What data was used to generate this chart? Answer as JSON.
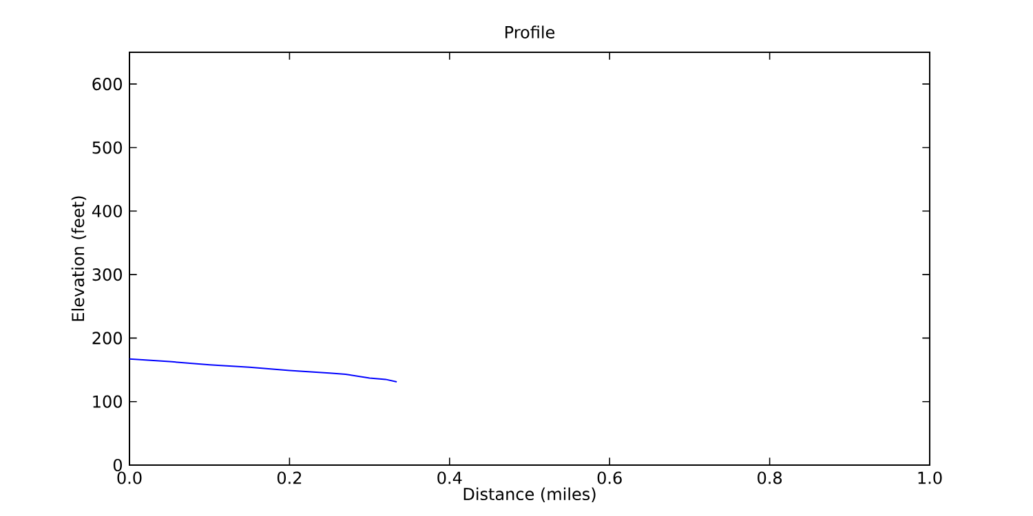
{
  "chart_data": {
    "type": "line",
    "title": "Profile",
    "xlabel": "Distance (miles)",
    "ylabel": "Elevation (feet)",
    "x": [
      0,
      0.05,
      0.1,
      0.15,
      0.2,
      0.25,
      0.27,
      0.3,
      0.32,
      0.334
    ],
    "series": [
      {
        "color": "#0000ff",
        "values": [
          167,
          163,
          158,
          154,
          149,
          145,
          143,
          137,
          135,
          131
        ]
      }
    ],
    "xlim": [
      0,
      1
    ],
    "ylim": [
      0,
      650
    ],
    "xticks": [
      {
        "value": 0,
        "label": "0.0"
      },
      {
        "value": 0.2,
        "label": "0.2"
      },
      {
        "value": 0.4,
        "label": "0.4"
      },
      {
        "value": 0.6,
        "label": "0.6"
      },
      {
        "value": 0.8,
        "label": "0.8"
      },
      {
        "value": 1,
        "label": "1.0"
      }
    ],
    "yticks": [
      0,
      100,
      200,
      300,
      400,
      500,
      600
    ]
  }
}
